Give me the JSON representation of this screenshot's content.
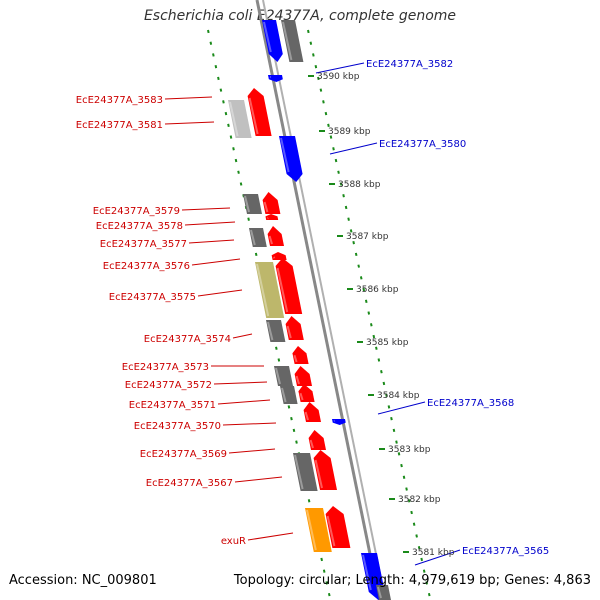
{
  "title": "Escherichia coli E24377A, complete genome",
  "footer": {
    "accession": "Accession: NC_009801",
    "topology": "Topology: circular;",
    "length": "Length: 4,979,619 bp;",
    "genes": "Genes: 4,863"
  },
  "colors": {
    "forward_gene": "#ff0000",
    "reverse_gene": "#0000ff",
    "pseudo_dark": "#666666",
    "pseudo_light": "#c0c0c0",
    "khaki": "#bdb76b",
    "orange": "#ff9900",
    "left_label": "#cc0000",
    "right_label": "#0000cc",
    "backbone": "#888888",
    "tick_dashes": "#1a8a1a"
  },
  "scale_ticks": [
    "3590 kbp",
    "3589 kbp",
    "3588 kbp",
    "3587 kbp",
    "3586 kbp",
    "3585 kbp",
    "3584 kbp",
    "3583 kbp",
    "3582 kbp",
    "3581 kbp"
  ],
  "left_labels": [
    "EcE24377A_3583",
    "EcE24377A_3581",
    "EcE24377A_3579",
    "EcE24377A_3578",
    "EcE24377A_3577",
    "EcE24377A_3576",
    "EcE24377A_3575",
    "EcE24377A_3574",
    "EcE24377A_3573",
    "EcE24377A_3572",
    "EcE24377A_3571",
    "EcE24377A_3570",
    "EcE24377A_3569",
    "EcE24377A_3567",
    "exuR"
  ],
  "right_labels": [
    "EcE24377A_3582",
    "EcE24377A_3580",
    "EcE24377A_3568",
    "EcE24377A_3565"
  ]
}
